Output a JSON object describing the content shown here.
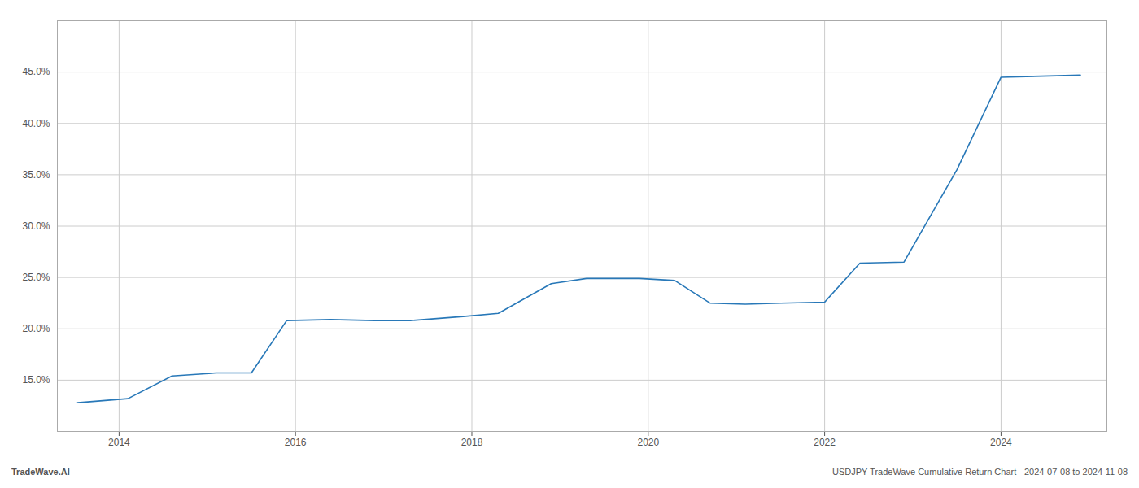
{
  "chart_data": {
    "type": "line",
    "x": [
      2013.53,
      2014.1,
      2014.6,
      2015.1,
      2015.5,
      2015.9,
      2016.4,
      2016.9,
      2017.3,
      2017.9,
      2018.3,
      2018.9,
      2019.3,
      2019.9,
      2020.3,
      2020.7,
      2021.1,
      2021.5,
      2022.0,
      2022.4,
      2022.9,
      2023.5,
      2024.0,
      2024.9
    ],
    "values": [
      0.128,
      0.132,
      0.154,
      0.157,
      0.157,
      0.208,
      0.209,
      0.208,
      0.208,
      0.212,
      0.215,
      0.244,
      0.249,
      0.249,
      0.247,
      0.225,
      0.224,
      0.225,
      0.226,
      0.264,
      0.265,
      0.355,
      0.445,
      0.447
    ],
    "color": "#2878b8",
    "xlim": [
      2013.3,
      2025.2
    ],
    "xticks": [
      2014,
      2016,
      2018,
      2020,
      2022,
      2024
    ],
    "ylim": [
      0.1,
      0.5
    ],
    "yticks": [
      {
        "value": 0.15,
        "label": "15.0%"
      },
      {
        "value": 0.2,
        "label": "20.0%"
      },
      {
        "value": 0.25,
        "label": "25.0%"
      },
      {
        "value": 0.3,
        "label": "30.0%"
      },
      {
        "value": 0.35,
        "label": "35.0%"
      },
      {
        "value": 0.4,
        "label": "40.0%"
      },
      {
        "value": 0.45,
        "label": "45.0%"
      }
    ],
    "grid": true,
    "annotations": [
      "TradeWave.AI",
      "USDJPY TradeWave Cumulative Return Chart - 2024-07-08 to 2024-11-08"
    ]
  }
}
